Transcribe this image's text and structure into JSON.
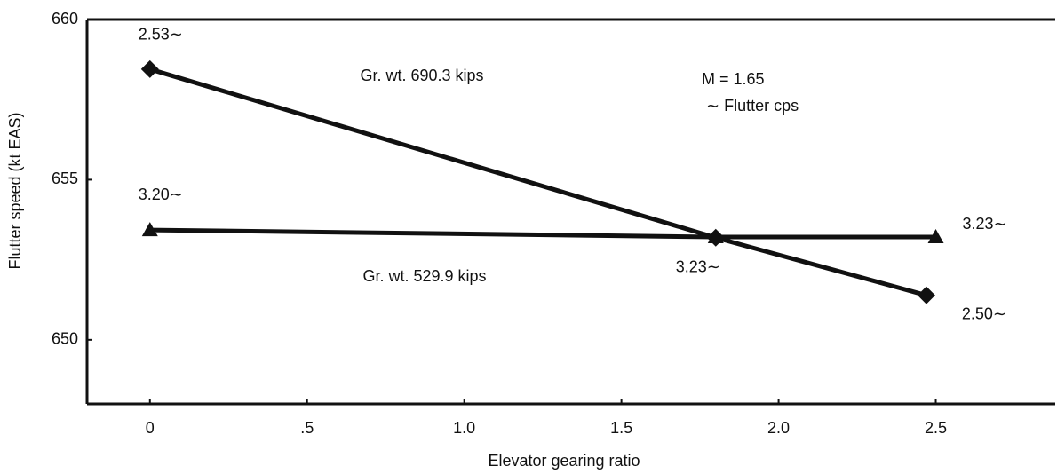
{
  "chart_data": {
    "type": "line",
    "xlabel": "Elevator gearing ratio",
    "ylabel": "Flutter speed (kt EAS)",
    "annotations": [
      "M = 1.65",
      "∼ Flutter cps"
    ],
    "xlim": [
      -0.2,
      2.88
    ],
    "ylim": [
      648,
      660
    ],
    "xticks": [
      0,
      {
        "value": 0.5,
        "label": ".5"
      },
      {
        "value": 1,
        "label": "1.0"
      },
      1.5,
      {
        "value": 2,
        "label": "2.0"
      },
      2.5
    ],
    "yticks": [
      650,
      655,
      660
    ],
    "grid": false,
    "series": [
      {
        "name": "Gr. wt. 690.3 kips",
        "color": "#111111",
        "marker": "diamond",
        "x": [
          0,
          1.8,
          2.47
        ],
        "values": [
          658.45,
          653.19,
          651.39
        ],
        "value_labels": [
          "2.53∼",
          "3.23∼",
          "2.50∼"
        ]
      },
      {
        "name": "Gr. wt. 529.9 kips",
        "color": "#111111",
        "marker": "triangle",
        "x": [
          0,
          1.8,
          2.5
        ],
        "values": [
          653.43,
          653.21,
          653.21
        ],
        "value_labels": [
          "3.20∼",
          null,
          "3.23∼"
        ]
      }
    ]
  }
}
